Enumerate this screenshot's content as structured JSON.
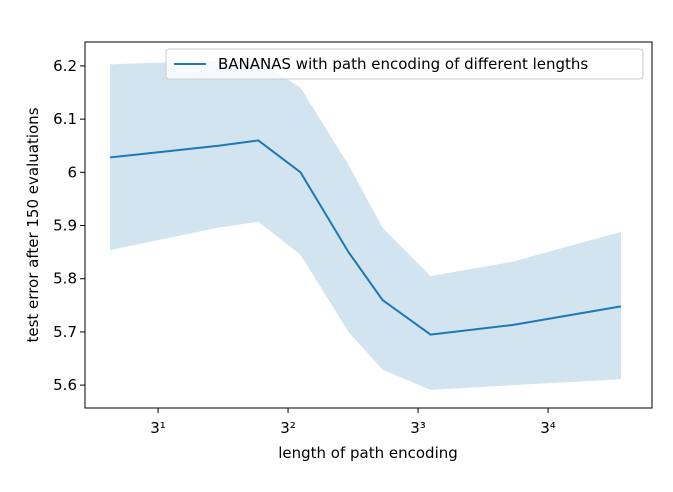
{
  "chart_data": {
    "type": "line",
    "xlabel": "length of path encoding",
    "ylabel": "test error after 150 evaluations",
    "x": [
      2,
      5,
      7,
      10,
      15,
      20,
      30,
      60,
      150
    ],
    "series": [
      {
        "name": "BANANAS with path encoding of different lengths",
        "color": "#1f77b4",
        "values": [
          6.028,
          6.05,
          6.06,
          6.0,
          5.85,
          5.76,
          5.695,
          5.713,
          5.748
        ],
        "upper": [
          6.203,
          6.21,
          6.21,
          6.159,
          6.014,
          5.896,
          5.805,
          5.832,
          5.888
        ],
        "lower": [
          5.854,
          5.896,
          5.907,
          5.845,
          5.7,
          5.629,
          5.591,
          5.6,
          5.611
        ]
      }
    ],
    "xscale": "log",
    "xbase": 3,
    "xlim": [
      1.618,
      195
    ],
    "xticks": [
      {
        "value": 3,
        "label": "3¹"
      },
      {
        "value": 9,
        "label": "3²"
      },
      {
        "value": 27,
        "label": "3³"
      },
      {
        "value": 81,
        "label": "3⁴"
      }
    ],
    "ylim": [
      5.557,
      6.245
    ],
    "yticks": [
      5.6,
      5.7,
      5.8,
      5.9,
      6.0,
      6.1,
      6.2
    ],
    "legend": "upper right"
  }
}
